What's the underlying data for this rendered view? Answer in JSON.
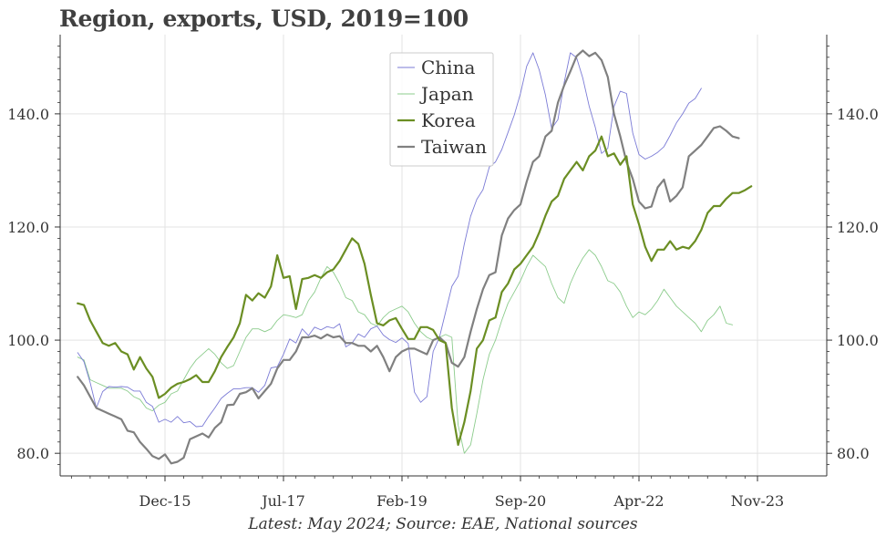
{
  "title": "Region, exports, USD, 2019=100",
  "source": "Latest: May 2024; Source: EAE, National sources",
  "chart_data": {
    "type": "line",
    "title": "Region, exports, USD, 2019=100",
    "xlabel": "",
    "ylabel": "",
    "x_tick_labels": [
      "Dec-15",
      "Jul-17",
      "Feb-19",
      "Sep-20",
      "Apr-22",
      "Nov-23"
    ],
    "y_tick_labels": [
      "80.0",
      "100.0",
      "120.0",
      "140.0"
    ],
    "y_ticks": [
      80,
      100,
      120,
      140
    ],
    "ylim": [
      76,
      154
    ],
    "xlim": [
      -6,
      111
    ],
    "x_start": "Jun-14",
    "x_end": "May-24",
    "grid": true,
    "legend_position": "top-center",
    "right_axis": true,
    "series": [
      {
        "name": "China",
        "color": "#7b7bd6",
        "width": 0.9,
        "values": [
          97.8,
          96.2,
          92.5,
          88.0,
          90.9,
          91.8,
          91.7,
          91.8,
          91.7,
          91.0,
          91.0,
          89.0,
          88.3,
          85.5,
          86.0,
          85.5,
          86.5,
          85.4,
          85.6,
          84.7,
          84.8,
          86.5,
          88.0,
          89.7,
          90.6,
          91.4,
          91.4,
          91.6,
          91.6,
          90.8,
          92.0,
          95.1,
          95.3,
          97.5,
          100.2,
          99.5,
          102.0,
          100.8,
          102.3,
          101.8,
          102.4,
          102.1,
          102.9,
          98.8,
          99.5,
          101.1,
          100.5,
          102.0,
          102.5,
          100.9,
          100.1,
          99.6,
          100.4,
          99.4,
          90.8,
          89.0,
          90.0,
          98.0,
          100.5,
          105.0,
          109.5,
          111.3,
          117.0,
          121.9,
          124.9,
          126.6,
          130.6,
          131.5,
          133.7,
          136.7,
          139.8,
          143.6,
          148.4,
          150.8,
          147.8,
          143.3,
          137.4,
          139.0,
          145.5,
          150.8,
          149.9,
          146.3,
          141.4,
          137.6,
          133.0,
          133.9,
          141.3,
          144.0,
          143.6,
          136.6,
          132.8,
          132.0,
          132.5,
          133.2,
          134.2,
          136.2,
          138.4,
          140.0,
          141.9,
          142.7,
          144.5
        ]
      },
      {
        "name": "Japan",
        "color": "#8ccc8c",
        "width": 0.9,
        "values": [
          97.0,
          96.5,
          93.0,
          92.5,
          92.0,
          91.5,
          91.5,
          91.5,
          91.0,
          90.0,
          89.5,
          88.0,
          87.5,
          88.5,
          89.0,
          90.5,
          91.0,
          93.0,
          95.0,
          96.5,
          97.5,
          98.5,
          97.5,
          96.0,
          95.0,
          95.5,
          98.0,
          100.5,
          102.0,
          102.0,
          101.5,
          102.0,
          103.5,
          104.5,
          104.3,
          104.0,
          104.5,
          107.0,
          108.5,
          111.0,
          113.0,
          112.0,
          110.0,
          107.5,
          107.0,
          105.0,
          104.5,
          103.0,
          102.5,
          104.0,
          105.0,
          105.5,
          106.0,
          105.0,
          103.0,
          101.5,
          100.5,
          100.0,
          100.5,
          101.0,
          100.5,
          85.0,
          80.0,
          81.5,
          87.0,
          93.0,
          97.5,
          100.0,
          103.5,
          106.5,
          108.5,
          110.5,
          113.0,
          115.0,
          114.0,
          113.0,
          110.0,
          107.5,
          106.5,
          110.0,
          112.5,
          114.5,
          116.0,
          115.0,
          113.0,
          110.5,
          110.0,
          108.5,
          106.0,
          104.0,
          105.0,
          104.5,
          105.5,
          107.0,
          109.0,
          107.5,
          106.0,
          105.0,
          104.0,
          103.0,
          101.5,
          103.5,
          104.5,
          106.0,
          103.0,
          102.7
        ]
      },
      {
        "name": "Korea",
        "color": "#6b8e23",
        "width": 2.2,
        "values": [
          106.5,
          106.2,
          103.5,
          101.5,
          99.5,
          99.0,
          99.5,
          98.0,
          97.5,
          94.8,
          97.0,
          95.0,
          93.5,
          89.8,
          90.5,
          91.6,
          92.3,
          92.6,
          93.1,
          93.8,
          92.6,
          92.6,
          94.5,
          97.0,
          98.8,
          100.5,
          103.0,
          108.0,
          107.0,
          108.3,
          107.5,
          109.5,
          115.0,
          111.0,
          111.3,
          105.5,
          110.8,
          111.0,
          111.5,
          111.0,
          112.0,
          112.5,
          114.0,
          116.0,
          118.0,
          117.0,
          113.5,
          108.0,
          103.0,
          102.6,
          103.5,
          103.9,
          102.0,
          100.2,
          100.2,
          102.3,
          102.3,
          101.8,
          100.0,
          99.5,
          88.0,
          81.5,
          85.5,
          91.0,
          98.5,
          100.0,
          103.5,
          104.0,
          108.5,
          110.0,
          112.5,
          113.5,
          115.0,
          116.5,
          119.0,
          122.0,
          124.5,
          125.5,
          128.5,
          130.0,
          131.5,
          130.0,
          132.5,
          133.5,
          136.0,
          132.5,
          133.0,
          131.0,
          132.5,
          124.0,
          120.5,
          116.5,
          114.0,
          116.0,
          116.0,
          117.5,
          116.0,
          116.5,
          116.2,
          117.5,
          119.5,
          122.5,
          123.7,
          123.7,
          125.0,
          126.0,
          126.0,
          126.5,
          127.2
        ]
      },
      {
        "name": "Taiwan",
        "color": "#808080",
        "width": 2.2,
        "values": [
          93.5,
          92.0,
          90.0,
          88.0,
          87.5,
          87.0,
          86.5,
          86.0,
          84.0,
          83.7,
          82.0,
          80.8,
          79.5,
          79.0,
          79.8,
          78.2,
          78.5,
          79.2,
          82.5,
          83.0,
          83.5,
          82.8,
          84.5,
          85.5,
          88.5,
          88.6,
          90.5,
          90.8,
          91.5,
          89.7,
          91.0,
          92.3,
          95.0,
          96.5,
          96.5,
          98.0,
          100.5,
          100.5,
          100.8,
          100.3,
          101.0,
          100.5,
          100.7,
          99.5,
          99.5,
          99.0,
          99.0,
          98.0,
          99.0,
          97.0,
          94.5,
          97.0,
          98.0,
          98.5,
          98.5,
          98.0,
          97.5,
          100.0,
          100.5,
          99.5,
          96.0,
          95.3,
          97.0,
          101.5,
          105.5,
          109.0,
          111.5,
          112.0,
          118.5,
          121.5,
          123.0,
          124.0,
          128.0,
          131.5,
          132.5,
          136.0,
          137.0,
          142.0,
          145.0,
          147.5,
          150.2,
          151.2,
          150.2,
          150.8,
          149.5,
          146.5,
          140.0,
          136.0,
          131.5,
          128.5,
          124.5,
          123.3,
          123.6,
          127.0,
          128.4,
          124.5,
          125.5,
          127.0,
          132.5,
          133.5,
          134.5,
          136.0,
          137.5,
          137.8,
          137.0,
          136.0,
          135.7
        ]
      }
    ]
  }
}
